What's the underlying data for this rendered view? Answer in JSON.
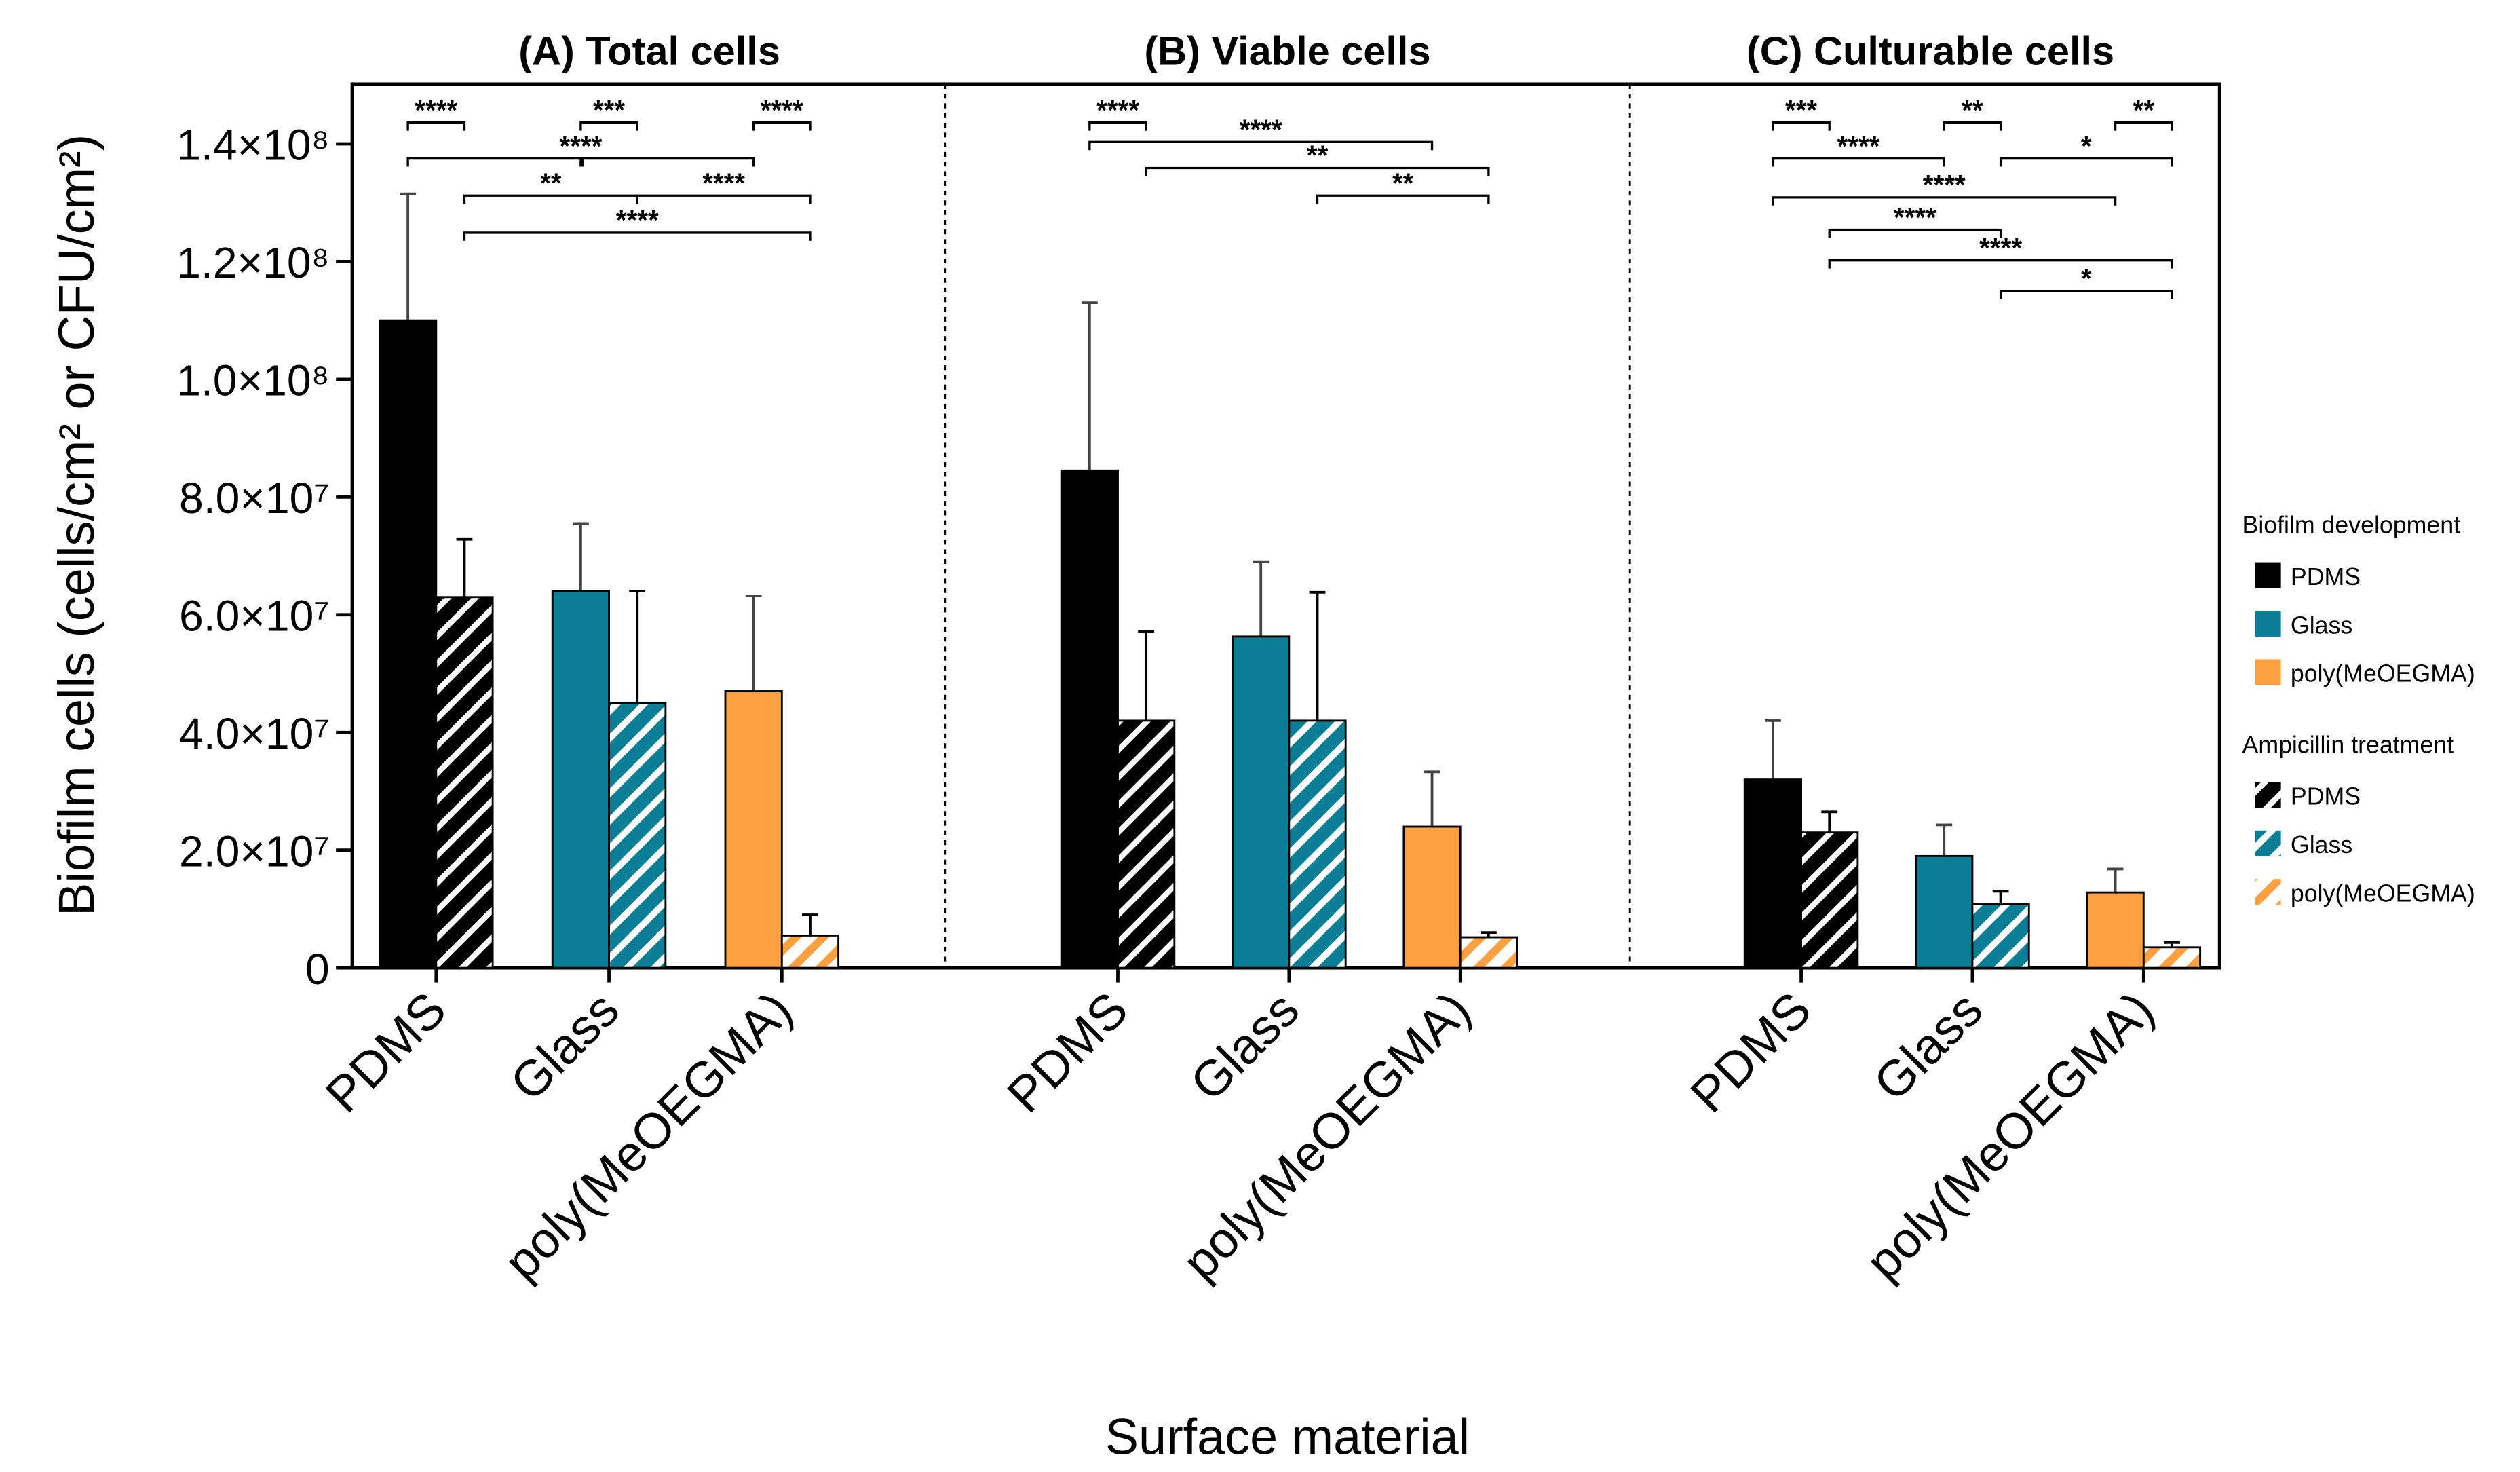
{
  "chart_data": {
    "type": "bar",
    "ylabel": "Biofilm cells (cells/cm² or CFU/cm²)",
    "xlabel": "Surface material",
    "ylim": [
      0,
      150000000
    ],
    "y_ticks": [
      0,
      20000000,
      40000000,
      60000000,
      80000000,
      100000000,
      120000000,
      140000000
    ],
    "y_tick_labels": [
      "0",
      "2.0×10⁷",
      "4.0×10⁷",
      "6.0×10⁷",
      "8.0×10⁷",
      "1.0×10⁸",
      "1.2×10⁸",
      "1.4×10⁸"
    ],
    "categories": [
      "PDMS",
      "Glass",
      "poly(MeOEGMA)"
    ],
    "series_names": [
      "Biofilm development",
      "Ampicillin treatment"
    ],
    "colors": {
      "PDMS": "#000000",
      "Glass": "#0a7e94",
      "poly(MeOEGMA)": "#fca041"
    },
    "panels": [
      {
        "title": "(A) Total cells",
        "bars": [
          {
            "category": "PDMS",
            "treatment": "Biofilm development",
            "value": 110000000,
            "error": 21500000
          },
          {
            "category": "PDMS",
            "treatment": "Ampicillin treatment",
            "value": 63000000,
            "error": 9800000
          },
          {
            "category": "Glass",
            "treatment": "Biofilm development",
            "value": 64000000,
            "error": 11500000
          },
          {
            "category": "Glass",
            "treatment": "Ampicillin treatment",
            "value": 45000000,
            "error": 19000000
          },
          {
            "category": "poly(MeOEGMA)",
            "treatment": "Biofilm development",
            "value": 47000000,
            "error": 16200000
          },
          {
            "category": "poly(MeOEGMA)",
            "treatment": "Ampicillin treatment",
            "value": 5500000,
            "error": 3500000
          }
        ],
        "significance": [
          {
            "from": 0,
            "to": 1,
            "y": 143600000,
            "label": "****"
          },
          {
            "from": 2,
            "to": 3,
            "y": 143600000,
            "label": "***"
          },
          {
            "from": 4,
            "to": 5,
            "y": 143600000,
            "label": "****"
          },
          {
            "from": 0,
            "to": 2,
            "y": 137500000,
            "label": ""
          },
          {
            "from": 2,
            "to": 4,
            "y": 137500000,
            "label": "****",
            "label_at": 2
          },
          {
            "from": 1,
            "to": 3,
            "y": 131200000,
            "label": "**"
          },
          {
            "from": 3,
            "to": 5,
            "y": 131200000,
            "label": "****"
          },
          {
            "from": 1,
            "to": 5,
            "y": 124900000,
            "label": "****"
          }
        ]
      },
      {
        "title": "(B) Viable cells",
        "bars": [
          {
            "category": "PDMS",
            "treatment": "Biofilm development",
            "value": 84500000,
            "error": 28500000
          },
          {
            "category": "PDMS",
            "treatment": "Ampicillin treatment",
            "value": 42000000,
            "error": 15200000
          },
          {
            "category": "Glass",
            "treatment": "Biofilm development",
            "value": 56300000,
            "error": 12700000
          },
          {
            "category": "Glass",
            "treatment": "Ampicillin treatment",
            "value": 42000000,
            "error": 21800000
          },
          {
            "category": "poly(MeOEGMA)",
            "treatment": "Biofilm development",
            "value": 24000000,
            "error": 9300000
          },
          {
            "category": "poly(MeOEGMA)",
            "treatment": "Ampicillin treatment",
            "value": 5200000,
            "error": 800000
          }
        ],
        "significance": [
          {
            "from": 0,
            "to": 1,
            "y": 143600000,
            "label": "****"
          },
          {
            "from": 0,
            "to": 4,
            "y": 140300000,
            "label": "****"
          },
          {
            "from": 1,
            "to": 5,
            "y": 135900000,
            "label": "**"
          },
          {
            "from": 3,
            "to": 5,
            "y": 131200000,
            "label": "**"
          }
        ]
      },
      {
        "title": "(C) Culturable cells",
        "bars": [
          {
            "category": "PDMS",
            "treatment": "Biofilm development",
            "value": 32000000,
            "error": 10000000
          },
          {
            "category": "PDMS",
            "treatment": "Ampicillin treatment",
            "value": 23000000,
            "error": 3500000
          },
          {
            "category": "Glass",
            "treatment": "Biofilm development",
            "value": 19000000,
            "error": 5300000
          },
          {
            "category": "Glass",
            "treatment": "Ampicillin treatment",
            "value": 10800000,
            "error": 2200000
          },
          {
            "category": "poly(MeOEGMA)",
            "treatment": "Biofilm development",
            "value": 12800000,
            "error": 4000000
          },
          {
            "category": "poly(MeOEGMA)",
            "treatment": "Ampicillin treatment",
            "value": 3500000,
            "error": 800000
          }
        ],
        "significance": [
          {
            "from": 0,
            "to": 1,
            "y": 143600000,
            "label": "***"
          },
          {
            "from": 2,
            "to": 3,
            "y": 143600000,
            "label": "**"
          },
          {
            "from": 4,
            "to": 5,
            "y": 143600000,
            "label": "**"
          },
          {
            "from": 0,
            "to": 2,
            "y": 137500000,
            "label": "****"
          },
          {
            "from": 3,
            "to": 5,
            "y": 137500000,
            "label": "*"
          },
          {
            "from": 0,
            "to": 4,
            "y": 130900000,
            "label": "****"
          },
          {
            "from": 1,
            "to": 3,
            "y": 125400000,
            "label": "****"
          },
          {
            "from": 1,
            "to": 5,
            "y": 120200000,
            "label": "****"
          },
          {
            "from": 3,
            "to": 5,
            "y": 115000000,
            "label": "*"
          }
        ]
      }
    ],
    "legend": {
      "position": "right",
      "groups": [
        {
          "title": "Biofilm development",
          "items": [
            "PDMS",
            "Glass",
            "poly(MeOEGMA)"
          ]
        },
        {
          "title": "Ampicillin treatment",
          "items": [
            "PDMS",
            "Glass",
            "poly(MeOEGMA)"
          ]
        }
      ]
    }
  }
}
